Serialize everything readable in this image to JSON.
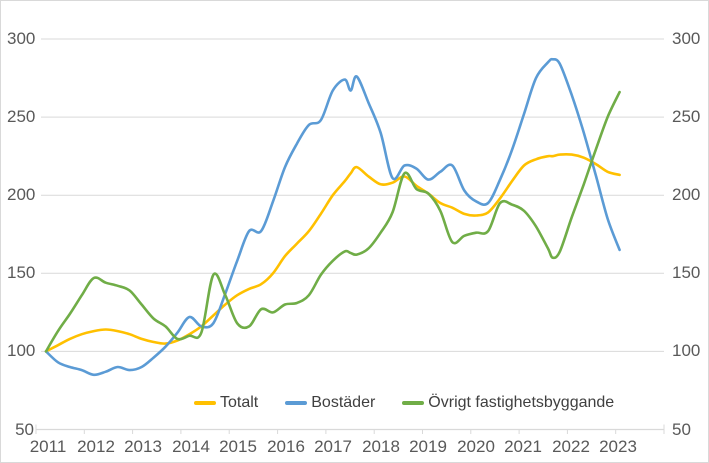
{
  "chart_data": {
    "type": "line",
    "title": "",
    "xlabel": "",
    "ylabel": "",
    "xlim": [
      2011,
      2024
    ],
    "ylim": [
      50,
      300
    ],
    "grid": "horizontal",
    "legend_position": "bottom-center",
    "y_ticks": [
      50,
      100,
      150,
      200,
      250,
      300
    ],
    "y_tick_labels": [
      "50",
      "100",
      "150",
      "200",
      "250",
      "300"
    ],
    "x_tick_labels": [
      "2011",
      "2012",
      "2013",
      "2014",
      "2015",
      "2016",
      "2017",
      "2018",
      "2019",
      "2020",
      "2021",
      "2022",
      "2023"
    ],
    "x_years": [
      2011,
      2011.25,
      2011.5,
      2011.75,
      2012,
      2012.25,
      2012.5,
      2012.75,
      2013,
      2013.25,
      2013.5,
      2013.75,
      2014,
      2014.25,
      2014.5,
      2014.75,
      2015,
      2015.25,
      2015.5,
      2015.75,
      2016,
      2016.25,
      2016.5,
      2016.75,
      2017,
      2017.25,
      2017.375,
      2017.5,
      2017.75,
      2018,
      2018.25,
      2018.5,
      2018.75,
      2019,
      2019.25,
      2019.5,
      2019.75,
      2020,
      2020.25,
      2020.5,
      2020.75,
      2021,
      2021.25,
      2021.5,
      2021.6,
      2021.75,
      2022,
      2022.25,
      2022.5,
      2022.75,
      2023
    ],
    "series": [
      {
        "name": "Totalt",
        "color": "#FFC000",
        "values": [
          100,
          104,
          108,
          111,
          113,
          114,
          113,
          111,
          108,
          106,
          105,
          107,
          111,
          116,
          123,
          130,
          136,
          140,
          143,
          150,
          161,
          169,
          177,
          188,
          200,
          209,
          214,
          218,
          212,
          207,
          208,
          212,
          206,
          201,
          195,
          192,
          188,
          187,
          189,
          198,
          209,
          219,
          223,
          225,
          225,
          226,
          226,
          224,
          220,
          215,
          213
        ]
      },
      {
        "name": "Bostäder",
        "color": "#5B9BD5",
        "values": [
          100,
          93,
          90,
          88,
          85,
          87,
          90,
          88,
          90,
          96,
          103,
          112,
          122,
          116,
          118,
          137,
          158,
          177,
          177,
          196,
          218,
          233,
          245,
          248,
          267,
          274,
          267,
          276,
          259,
          240,
          211,
          219,
          217,
          210,
          215,
          219,
          203,
          196,
          195,
          210,
          229,
          252,
          275,
          285,
          287,
          284,
          264,
          240,
          213,
          185,
          165
        ]
      },
      {
        "name": "Övrigt fastighetsbyggande",
        "color": "#70AD47",
        "values": [
          100,
          113,
          124,
          136,
          147,
          144,
          142,
          139,
          130,
          121,
          116,
          108,
          110,
          112,
          149,
          136,
          118,
          116,
          127,
          125,
          130,
          131,
          136,
          149,
          158,
          164,
          163,
          162,
          166,
          176,
          189,
          214,
          204,
          201,
          190,
          170,
          174,
          176,
          177,
          195,
          194,
          190,
          180,
          166,
          160,
          164,
          186,
          207,
          229,
          250,
          266
        ]
      }
    ]
  },
  "colors": {
    "grid": "#D9D9D9",
    "axis": "#D9D9D9",
    "axis_text": "#595959",
    "legend_text": "#404040",
    "background": "#FFFFFF",
    "border": "#D9D9D9"
  }
}
